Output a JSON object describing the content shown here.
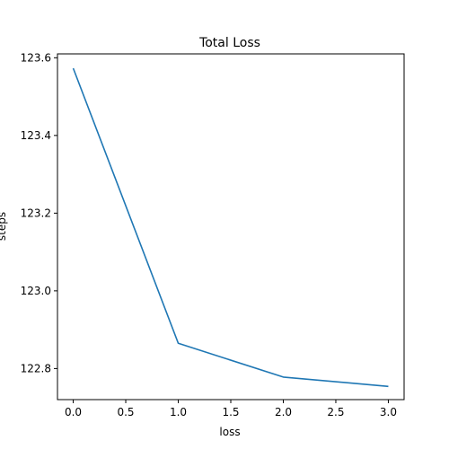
{
  "chart_data": {
    "type": "line",
    "title": "Total Loss",
    "xlabel": "loss",
    "ylabel": "steps",
    "x": [
      0,
      1,
      2,
      3
    ],
    "series": [
      {
        "values": [
          123.573,
          122.865,
          122.778,
          122.754
        ],
        "color": "#1f77b4"
      }
    ],
    "xlim": [
      -0.15,
      3.15
    ],
    "ylim": [
      122.72,
      123.61
    ],
    "xticks": [
      0.0,
      0.5,
      1.0,
      1.5,
      2.0,
      2.5,
      3.0
    ],
    "xtick_labels": [
      "0.0",
      "0.5",
      "1.0",
      "1.5",
      "2.0",
      "2.5",
      "3.0"
    ],
    "yticks": [
      122.8,
      123.0,
      123.2,
      123.4,
      123.6
    ],
    "ytick_labels": [
      "122.8",
      "123.0",
      "123.2",
      "123.4",
      "123.6"
    ],
    "grid": false,
    "legend": false
  }
}
